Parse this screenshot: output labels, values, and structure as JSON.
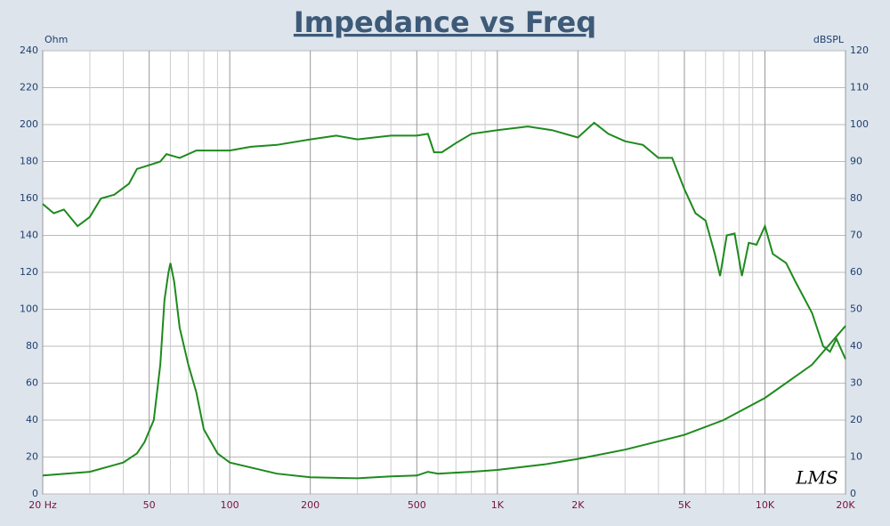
{
  "chart_data": {
    "type": "line",
    "title": "Impedance vs Freq",
    "y_label": "Ohm",
    "y2_label": "dBSPL",
    "annotation": "LMS",
    "log_x": true,
    "grid": true,
    "xlim": [
      20,
      20000
    ],
    "xticks": [
      {
        "value": 20,
        "label": "20  Hz"
      },
      50,
      100,
      200,
      500,
      {
        "value": 1000,
        "label": "1K"
      },
      {
        "value": 2000,
        "label": "2K"
      },
      {
        "value": 5000,
        "label": "5K"
      },
      {
        "value": 10000,
        "label": "10K"
      },
      {
        "value": 20000,
        "label": "20K"
      }
    ],
    "x_minor_ticks": [
      30,
      40,
      60,
      70,
      80,
      90,
      300,
      400,
      600,
      700,
      800,
      900,
      3000,
      4000,
      6000,
      7000,
      8000,
      9000
    ],
    "ylim": [
      0,
      240
    ],
    "yticks": [
      0,
      20,
      40,
      60,
      80,
      100,
      120,
      140,
      160,
      180,
      200,
      220,
      240
    ],
    "y2lim": [
      0,
      120
    ],
    "y2ticks": [
      0,
      10,
      20,
      30,
      40,
      50,
      60,
      70,
      80,
      90,
      100,
      110,
      120
    ],
    "series": [
      {
        "name": "Impedance",
        "color": "#1e8a1e",
        "x": [
          20,
          30,
          40,
          45,
          48,
          52,
          55,
          57,
          59,
          60,
          62,
          65,
          70,
          75,
          80,
          90,
          100,
          150,
          200,
          300,
          400,
          500,
          550,
          600,
          800,
          1000,
          1500,
          2000,
          3000,
          5000,
          7000,
          10000,
          15000,
          20000
        ],
        "values": [
          10,
          12,
          17,
          22,
          28,
          40,
          70,
          105,
          120,
          125,
          115,
          90,
          70,
          55,
          35,
          22,
          17,
          11,
          9,
          8.5,
          9.5,
          10,
          12,
          11,
          12,
          13,
          16,
          19,
          24,
          32,
          40,
          52,
          70,
          91
        ]
      },
      {
        "name": "SPL",
        "color": "#1e8a1e",
        "axis": "y2",
        "x": [
          20,
          22,
          24,
          27,
          30,
          33,
          37,
          42,
          45,
          50,
          55,
          58,
          65,
          75,
          90,
          100,
          120,
          150,
          200,
          250,
          300,
          400,
          500,
          550,
          580,
          620,
          700,
          800,
          1000,
          1300,
          1600,
          2000,
          2300,
          2600,
          3000,
          3500,
          4000,
          4500,
          5000,
          5500,
          6000,
          6500,
          6800,
          7200,
          7700,
          8200,
          8700,
          9300,
          10000,
          10700,
          12000,
          13000,
          15000,
          16500,
          17500,
          18500,
          20000
        ],
        "values": [
          78.5,
          76,
          77,
          72.5,
          75,
          80,
          81,
          84,
          88,
          89,
          90,
          92,
          91,
          93,
          93,
          93,
          94,
          94.5,
          96,
          97,
          96,
          97,
          97,
          97.5,
          92.5,
          92.5,
          95,
          97.5,
          98.5,
          99.5,
          98.5,
          96.5,
          100.5,
          97.5,
          95.5,
          94.5,
          91,
          91,
          82.5,
          76,
          74,
          65,
          59,
          70,
          70.5,
          59,
          68,
          67.5,
          72.5,
          65,
          62.5,
          57.5,
          49,
          40,
          38.5,
          42,
          36.5
        ]
      }
    ]
  }
}
